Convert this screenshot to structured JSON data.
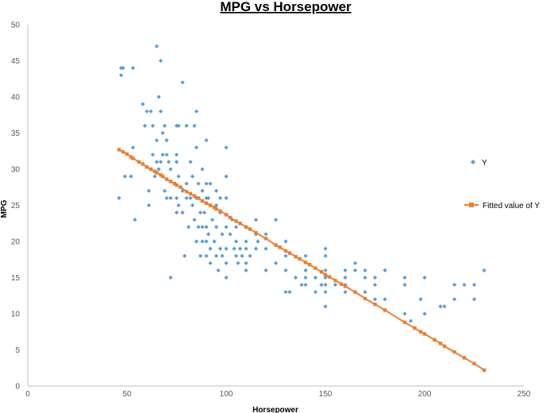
{
  "chart_data": {
    "type": "scatter",
    "title": "MPG vs Horsepower",
    "xlabel": "Horsepower",
    "ylabel": "MPG",
    "xlim": [
      0,
      250
    ],
    "ylim": [
      0,
      50
    ],
    "x_ticks": [
      "0",
      "50",
      "100",
      "150",
      "200",
      "250"
    ],
    "y_ticks": [
      "0",
      "5",
      "10",
      "15",
      "20",
      "25",
      "30",
      "35",
      "40",
      "45",
      "50"
    ],
    "grid": false,
    "legend_placement": "right",
    "colors": {
      "Y": "#5b9bd5",
      "Fitted value of Y": "#ed7d31"
    },
    "series": [
      {
        "name": "Y",
        "marker": "diamond",
        "points": [
          [
            46,
            26
          ],
          [
            47,
            43
          ],
          [
            47,
            44
          ],
          [
            48,
            44
          ],
          [
            49,
            29
          ],
          [
            52,
            29
          ],
          [
            53,
            44
          ],
          [
            53,
            33
          ],
          [
            54,
            23
          ],
          [
            58,
            39
          ],
          [
            59,
            36
          ],
          [
            60,
            38
          ],
          [
            61,
            25
          ],
          [
            61,
            27
          ],
          [
            62,
            30
          ],
          [
            62,
            38
          ],
          [
            63,
            36
          ],
          [
            63,
            32
          ],
          [
            64,
            29
          ],
          [
            65,
            31
          ],
          [
            65,
            34
          ],
          [
            65,
            47
          ],
          [
            66,
            30
          ],
          [
            66,
            40
          ],
          [
            67,
            31
          ],
          [
            67,
            38
          ],
          [
            67,
            45
          ],
          [
            68,
            32
          ],
          [
            68,
            35
          ],
          [
            68,
            29
          ],
          [
            69,
            27
          ],
          [
            69,
            36
          ],
          [
            70,
            26
          ],
          [
            70,
            32
          ],
          [
            70,
            34
          ],
          [
            71,
            31
          ],
          [
            72,
            26
          ],
          [
            72,
            15
          ],
          [
            72,
            30
          ],
          [
            74,
            28
          ],
          [
            75,
            24
          ],
          [
            75,
            26
          ],
          [
            75,
            31
          ],
          [
            75,
            36
          ],
          [
            75,
            32
          ],
          [
            76,
            25
          ],
          [
            76,
            29
          ],
          [
            76,
            36
          ],
          [
            78,
            24
          ],
          [
            78,
            27
          ],
          [
            78,
            42
          ],
          [
            79,
            18
          ],
          [
            80,
            26
          ],
          [
            80,
            28
          ],
          [
            80,
            36
          ],
          [
            81,
            22
          ],
          [
            82,
            26
          ],
          [
            82,
            31
          ],
          [
            83,
            25
          ],
          [
            83,
            29
          ],
          [
            84,
            23
          ],
          [
            84,
            36
          ],
          [
            85,
            20
          ],
          [
            85,
            26
          ],
          [
            85,
            33
          ],
          [
            85,
            38
          ],
          [
            86,
            22
          ],
          [
            86,
            28
          ],
          [
            87,
            18
          ],
          [
            87,
            24
          ],
          [
            88,
            20
          ],
          [
            88,
            22
          ],
          [
            88,
            27
          ],
          [
            88,
            30
          ],
          [
            89,
            24
          ],
          [
            90,
            18
          ],
          [
            90,
            20
          ],
          [
            90,
            22
          ],
          [
            90,
            26
          ],
          [
            90,
            28
          ],
          [
            90,
            34
          ],
          [
            91,
            21
          ],
          [
            91,
            26
          ],
          [
            92,
            17
          ],
          [
            92,
            19
          ],
          [
            92,
            25
          ],
          [
            92,
            28
          ],
          [
            93,
            23
          ],
          [
            94,
            20
          ],
          [
            95,
            18
          ],
          [
            95,
            22
          ],
          [
            95,
            25
          ],
          [
            95,
            27
          ],
          [
            96,
            16
          ],
          [
            97,
            19
          ],
          [
            97,
            24
          ],
          [
            97,
            26
          ],
          [
            98,
            18
          ],
          [
            98,
            21
          ],
          [
            100,
            15
          ],
          [
            100,
            17
          ],
          [
            100,
            19
          ],
          [
            100,
            22
          ],
          [
            100,
            26
          ],
          [
            100,
            29
          ],
          [
            100,
            33
          ],
          [
            102,
            21
          ],
          [
            103,
            23
          ],
          [
            104,
            19
          ],
          [
            105,
            18
          ],
          [
            105,
            20
          ],
          [
            105,
            22
          ],
          [
            106,
            17
          ],
          [
            107,
            19
          ],
          [
            108,
            18
          ],
          [
            110,
            16
          ],
          [
            110,
            17
          ],
          [
            110,
            19
          ],
          [
            110,
            20
          ],
          [
            110,
            22
          ],
          [
            112,
            18
          ],
          [
            115,
            19
          ],
          [
            115,
            21
          ],
          [
            115,
            23
          ],
          [
            116,
            20
          ],
          [
            120,
            16
          ],
          [
            120,
            19
          ],
          [
            120,
            21
          ],
          [
            125,
            17
          ],
          [
            125,
            23
          ],
          [
            130,
            13
          ],
          [
            130,
            16
          ],
          [
            130,
            18
          ],
          [
            130,
            20
          ],
          [
            132,
            13
          ],
          [
            135,
            15
          ],
          [
            138,
            14
          ],
          [
            140,
            15
          ],
          [
            140,
            14
          ],
          [
            140,
            16
          ],
          [
            140,
            18
          ],
          [
            145,
            13
          ],
          [
            145,
            15
          ],
          [
            148,
            14
          ],
          [
            150,
            11
          ],
          [
            150,
            13
          ],
          [
            150,
            14
          ],
          [
            150,
            15
          ],
          [
            150,
            16
          ],
          [
            150,
            18
          ],
          [
            150,
            19
          ],
          [
            155,
            14
          ],
          [
            160,
            13
          ],
          [
            160,
            14
          ],
          [
            160,
            15
          ],
          [
            160,
            16
          ],
          [
            165,
            16
          ],
          [
            165,
            17
          ],
          [
            170,
            13
          ],
          [
            170,
            15
          ],
          [
            170,
            16
          ],
          [
            175,
            12
          ],
          [
            175,
            14
          ],
          [
            175,
            15
          ],
          [
            180,
            12
          ],
          [
            180,
            16
          ],
          [
            190,
            10
          ],
          [
            190,
            14
          ],
          [
            190,
            15
          ],
          [
            193,
            9
          ],
          [
            198,
            12
          ],
          [
            200,
            10
          ],
          [
            200,
            15
          ],
          [
            208,
            11
          ],
          [
            210,
            11
          ],
          [
            215,
            12
          ],
          [
            215,
            14
          ],
          [
            220,
            14
          ],
          [
            225,
            12
          ],
          [
            225,
            14
          ],
          [
            230,
            16
          ]
        ]
      },
      {
        "name": "Fitted value of Y",
        "marker": "square",
        "points": [
          [
            46,
            32.7
          ],
          [
            48,
            32.4
          ],
          [
            50,
            32.1
          ],
          [
            52,
            31.7
          ],
          [
            53,
            31.5
          ],
          [
            56,
            31.0
          ],
          [
            58,
            30.7
          ],
          [
            60,
            30.3
          ],
          [
            62,
            30.0
          ],
          [
            64,
            29.7
          ],
          [
            65,
            29.5
          ],
          [
            67,
            29.2
          ],
          [
            68,
            29.0
          ],
          [
            70,
            28.6
          ],
          [
            72,
            28.3
          ],
          [
            74,
            28.0
          ],
          [
            75,
            27.8
          ],
          [
            77,
            27.5
          ],
          [
            80,
            26.9
          ],
          [
            82,
            26.6
          ],
          [
            84,
            26.3
          ],
          [
            86,
            26.0
          ],
          [
            88,
            25.6
          ],
          [
            90,
            25.3
          ],
          [
            92,
            25.0
          ],
          [
            94,
            24.7
          ],
          [
            95,
            24.5
          ],
          [
            97,
            24.2
          ],
          [
            100,
            23.7
          ],
          [
            102,
            23.3
          ],
          [
            105,
            22.8
          ],
          [
            107,
            22.5
          ],
          [
            110,
            22.0
          ],
          [
            112,
            21.7
          ],
          [
            115,
            21.2
          ],
          [
            120,
            20.4
          ],
          [
            125,
            19.5
          ],
          [
            127,
            19.2
          ],
          [
            130,
            18.7
          ],
          [
            132,
            18.4
          ],
          [
            135,
            17.9
          ],
          [
            137,
            17.6
          ],
          [
            140,
            17.1
          ],
          [
            142,
            16.8
          ],
          [
            145,
            16.3
          ],
          [
            148,
            15.8
          ],
          [
            150,
            15.4
          ],
          [
            152,
            15.1
          ],
          [
            155,
            14.6
          ],
          [
            158,
            14.1
          ],
          [
            160,
            13.8
          ],
          [
            165,
            13.0
          ],
          [
            170,
            12.1
          ],
          [
            175,
            11.3
          ],
          [
            180,
            10.5
          ],
          [
            190,
            8.8
          ],
          [
            195,
            8.0
          ],
          [
            198,
            7.5
          ],
          [
            200,
            7.2
          ],
          [
            205,
            6.4
          ],
          [
            208,
            5.9
          ],
          [
            210,
            5.5
          ],
          [
            215,
            4.7
          ],
          [
            220,
            3.9
          ],
          [
            225,
            3.1
          ],
          [
            230,
            2.2
          ]
        ]
      }
    ]
  }
}
